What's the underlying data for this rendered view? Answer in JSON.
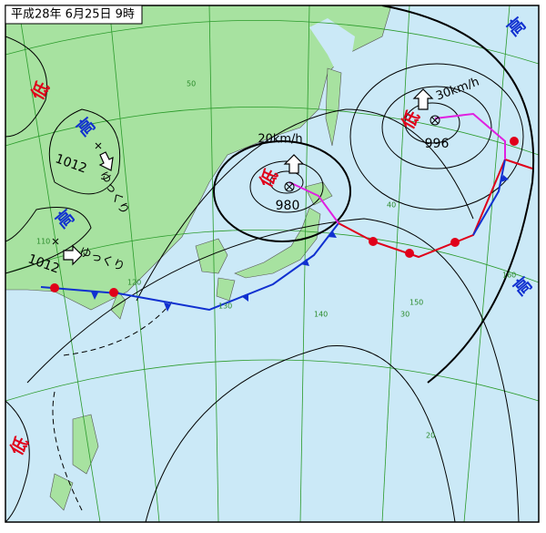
{
  "header": {
    "title": "平成28年 6月25日 9時"
  },
  "lows": [
    "低",
    "低",
    "低",
    "低"
  ],
  "highs": [
    "高",
    "高",
    "高",
    "高"
  ],
  "isobar_labels": [
    "1012",
    "1012",
    "980",
    "996"
  ],
  "movements": [
    "20km/h",
    "30km/h",
    "ゆっくり",
    "ゆっくり"
  ],
  "grid_labels": [
    "50",
    "40",
    "30",
    "20",
    "110",
    "120",
    "130",
    "140",
    "150",
    "160"
  ]
}
